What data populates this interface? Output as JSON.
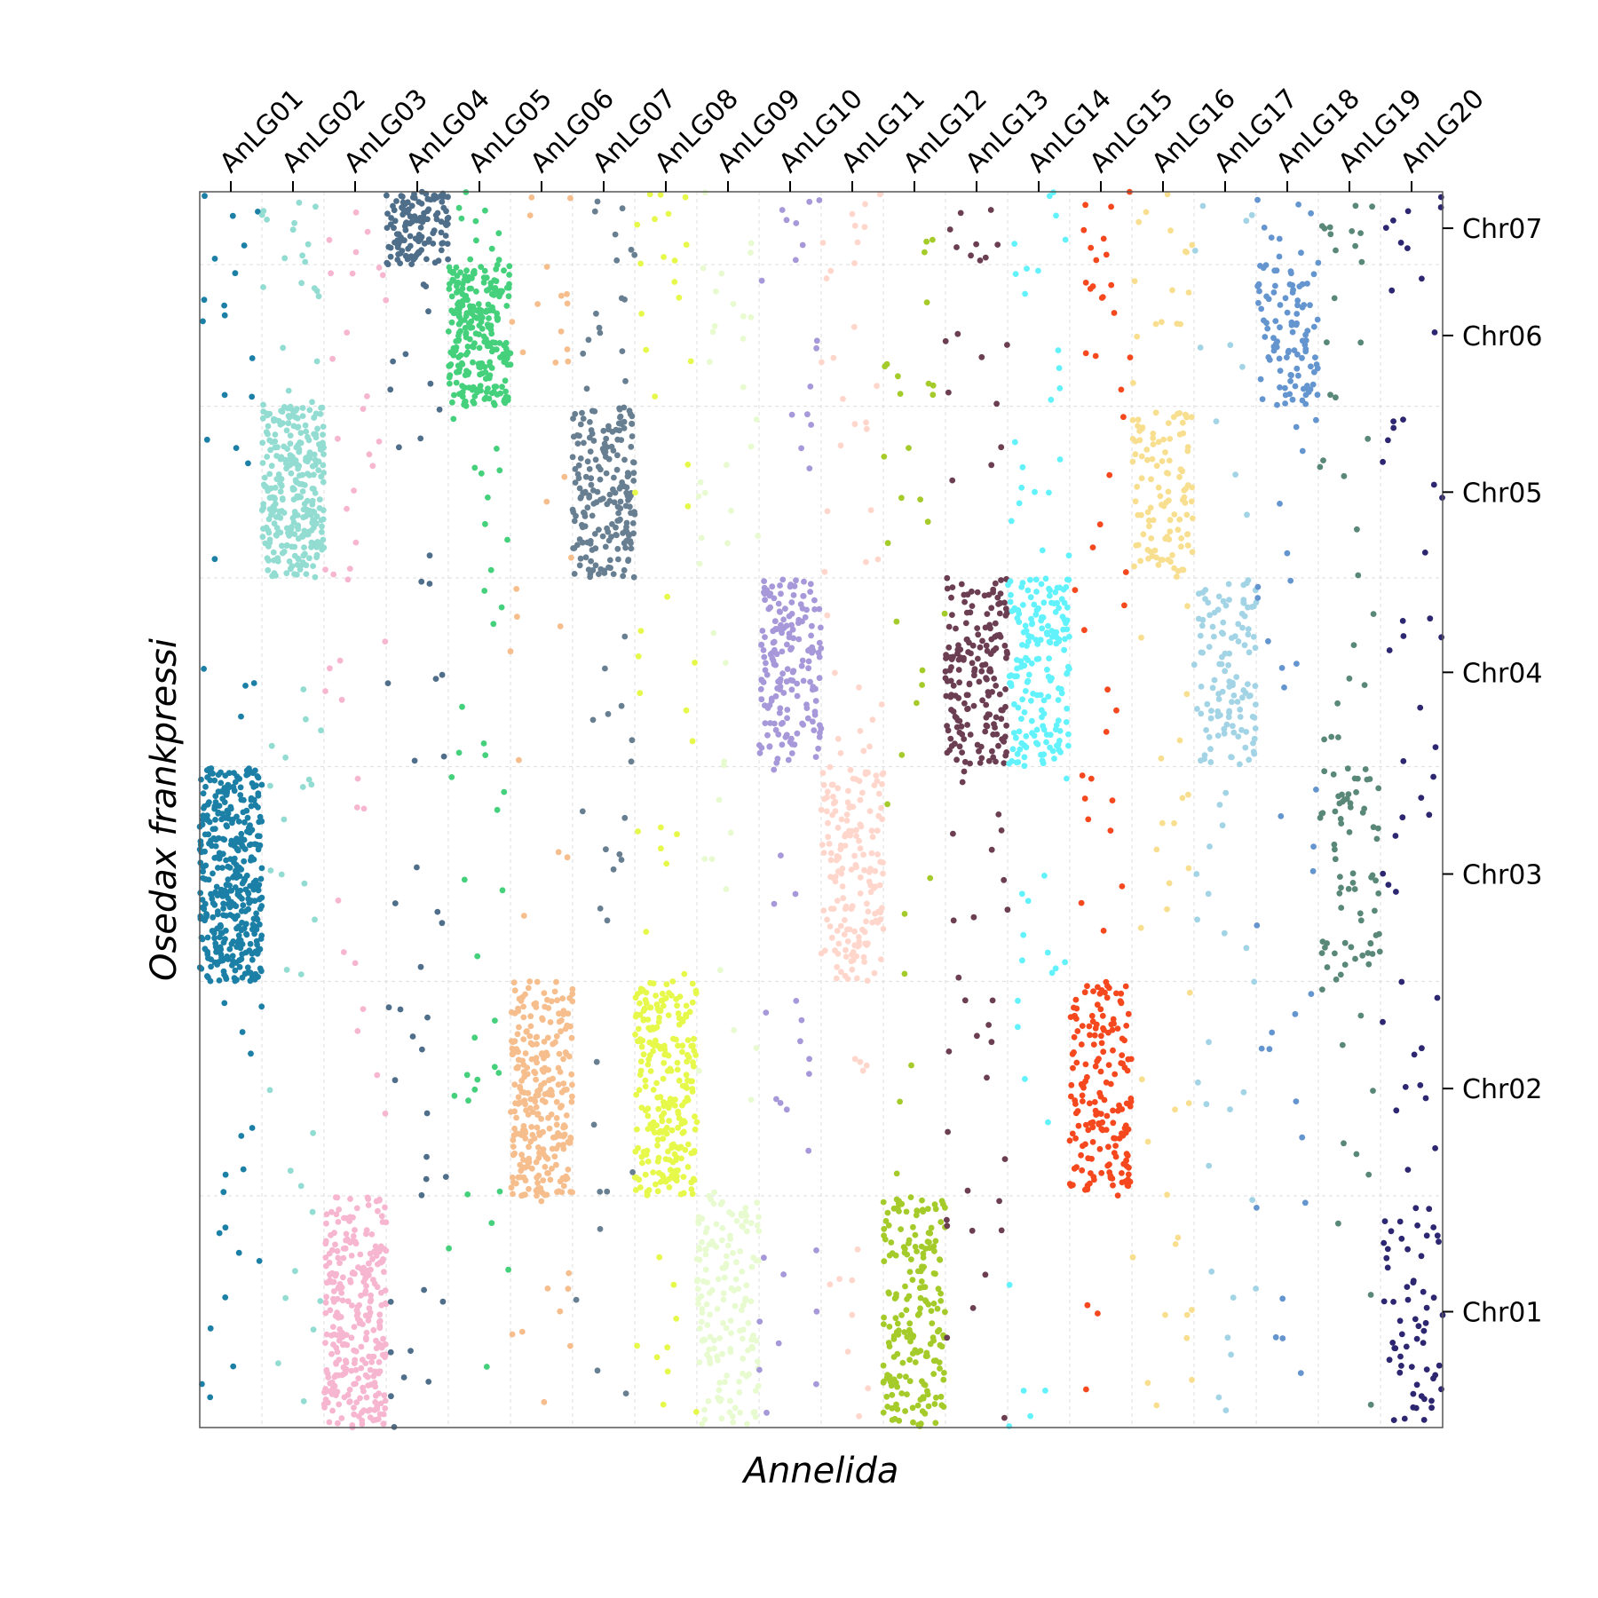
{
  "chart_data": {
    "type": "scatter",
    "title": "",
    "xlabel": "Annelida",
    "ylabel": "Osedax frankpressi",
    "x_categories": [
      "AnLG01",
      "AnLG02",
      "AnLG03",
      "AnLG04",
      "AnLG05",
      "AnLG06",
      "AnLG07",
      "AnLG08",
      "AnLG09",
      "AnLG10",
      "AnLG11",
      "AnLG12",
      "AnLG13",
      "AnLG14",
      "AnLG15",
      "AnLG16",
      "AnLG17",
      "AnLG18",
      "AnLG19",
      "AnLG20"
    ],
    "y_categories": [
      "Chr01",
      "Chr02",
      "Chr03",
      "Chr04",
      "Chr05",
      "Chr06",
      "Chr07"
    ],
    "x_block_sizes": [
      1.0,
      1.0,
      1.0,
      1.0,
      1.0,
      1.0,
      1.0,
      1.0,
      1.0,
      1.0,
      1.0,
      1.0,
      1.0,
      1.0,
      1.0,
      1.0,
      1.0,
      1.0,
      1.0,
      1.0
    ],
    "y_block_sizes": [
      1.08,
      1.0,
      1.0,
      0.88,
      0.8,
      0.66,
      0.34
    ],
    "colors": [
      "#1b7fa6",
      "#92dcd2",
      "#f7b6d0",
      "#4f6e8a",
      "#45d07c",
      "#f6bd8d",
      "#687f92",
      "#e6f84a",
      "#e8fbd0",
      "#a698d9",
      "#ffd6cb",
      "#a4cb2a",
      "#6b3e52",
      "#62f2fb",
      "#f5481e",
      "#f8df90",
      "#a2d4e6",
      "#6495cf",
      "#5a8878",
      "#2d2670"
    ],
    "strong_blocks": [
      {
        "x": "AnLG01",
        "y": "Chr03",
        "points": 400
      },
      {
        "x": "AnLG02",
        "y": "Chr05",
        "points": 300
      },
      {
        "x": "AnLG03",
        "y": "Chr01",
        "points": 300
      },
      {
        "x": "AnLG04",
        "y": "Chr07",
        "points": 130
      },
      {
        "x": "AnLG05",
        "y": "Chr06",
        "points": 260
      },
      {
        "x": "AnLG06",
        "y": "Chr02",
        "points": 280
      },
      {
        "x": "AnLG07",
        "y": "Chr05",
        "points": 200
      },
      {
        "x": "AnLG08",
        "y": "Chr02",
        "points": 250
      },
      {
        "x": "AnLG09",
        "y": "Chr01",
        "points": 160
      },
      {
        "x": "AnLG10",
        "y": "Chr04",
        "points": 180
      },
      {
        "x": "AnLG11",
        "y": "Chr03",
        "points": 170
      },
      {
        "x": "AnLG12",
        "y": "Chr01",
        "points": 200
      },
      {
        "x": "AnLG13",
        "y": "Chr04",
        "points": 180
      },
      {
        "x": "AnLG14",
        "y": "Chr04",
        "points": 180
      },
      {
        "x": "AnLG15",
        "y": "Chr02",
        "points": 180
      },
      {
        "x": "AnLG16",
        "y": "Chr05",
        "points": 110
      },
      {
        "x": "AnLG17",
        "y": "Chr04",
        "points": 120
      },
      {
        "x": "AnLG18",
        "y": "Chr06",
        "points": 100
      },
      {
        "x": "AnLG19",
        "y": "Chr03",
        "points": 70
      },
      {
        "x": "AnLG20",
        "y": "Chr01",
        "points": 60
      }
    ],
    "grid": true,
    "legend": "none"
  }
}
